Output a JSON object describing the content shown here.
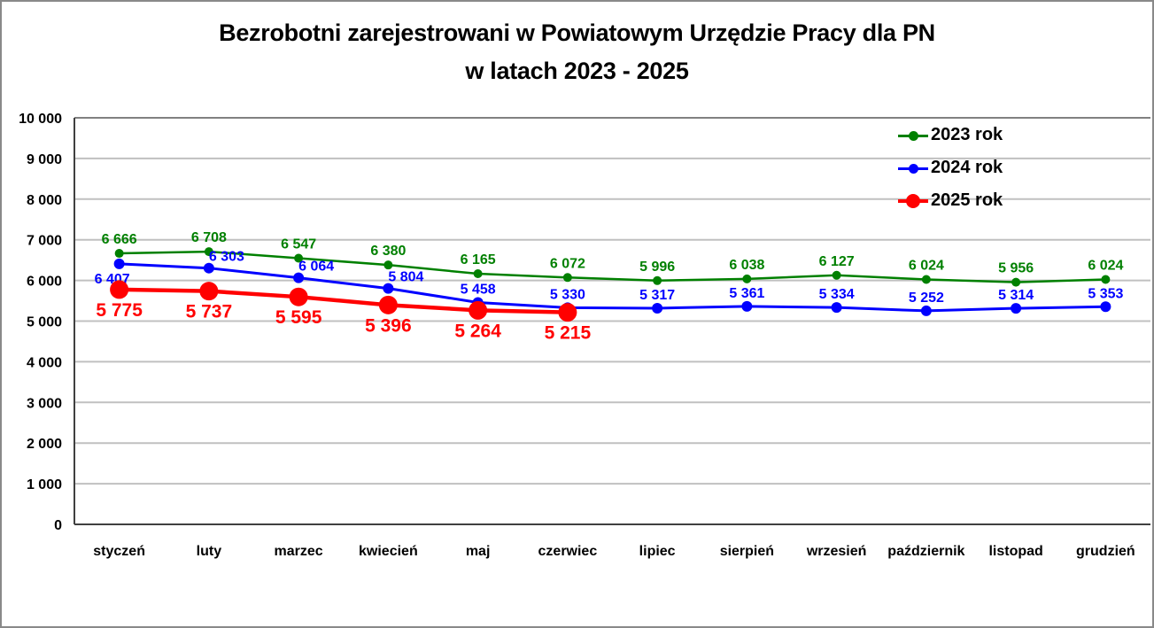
{
  "chart_data": {
    "type": "line",
    "title_line1": "Bezrobotni zarejestrowani w Powiatowym Urzędzie Pracy dla PN",
    "title_line2": "w latach 2023 - 2025",
    "categories": [
      "styczeń",
      "luty",
      "marzec",
      "kwiecień",
      "maj",
      "czerwiec",
      "lipiec",
      "sierpień",
      "wrzesień",
      "październik",
      "listopad",
      "grudzień"
    ],
    "series": [
      {
        "name": "2023 rok",
        "color": "#008000",
        "values": [
          6666,
          6708,
          6547,
          6380,
          6165,
          6072,
          5996,
          6038,
          6127,
          6024,
          5956,
          6024
        ],
        "data_labels": [
          "6 666",
          "6 708",
          "6 547",
          "6 380",
          "6 165",
          "6 072",
          "5 996",
          "6 038",
          "6 127",
          "6 024",
          "5 956",
          "6 024"
        ]
      },
      {
        "name": "2024 rok",
        "color": "#0000ff",
        "values": [
          6407,
          6303,
          6064,
          5804,
          5458,
          5330,
          5317,
          5361,
          5334,
          5252,
          5314,
          5353
        ],
        "data_labels": [
          "6 407",
          "6 303",
          "6 064",
          "5 804",
          "5 458",
          "5 330",
          "5 317",
          "5 361",
          "5 334",
          "5 252",
          "5 314",
          "5 353"
        ]
      },
      {
        "name": "2025 rok",
        "color": "#ff0000",
        "values": [
          5775,
          5737,
          5595,
          5396,
          5264,
          5215
        ],
        "data_labels": [
          "5 775",
          "5 737",
          "5 595",
          "5 396",
          "5 264",
          "5 215"
        ]
      }
    ],
    "ylim": [
      0,
      10000
    ],
    "ytick_step": 1000,
    "ytick_labels": [
      "0",
      "1 000",
      "2 000",
      "3 000",
      "4 000",
      "5 000",
      "6 000",
      "7 000",
      "8 000",
      "9 000",
      "10 000"
    ],
    "grid": true,
    "legend_position": "top-right",
    "colors": {
      "gridline": "#c0c0c0",
      "gridline_top": "#808080",
      "axis_line": "#404040",
      "text": "#000000"
    }
  }
}
